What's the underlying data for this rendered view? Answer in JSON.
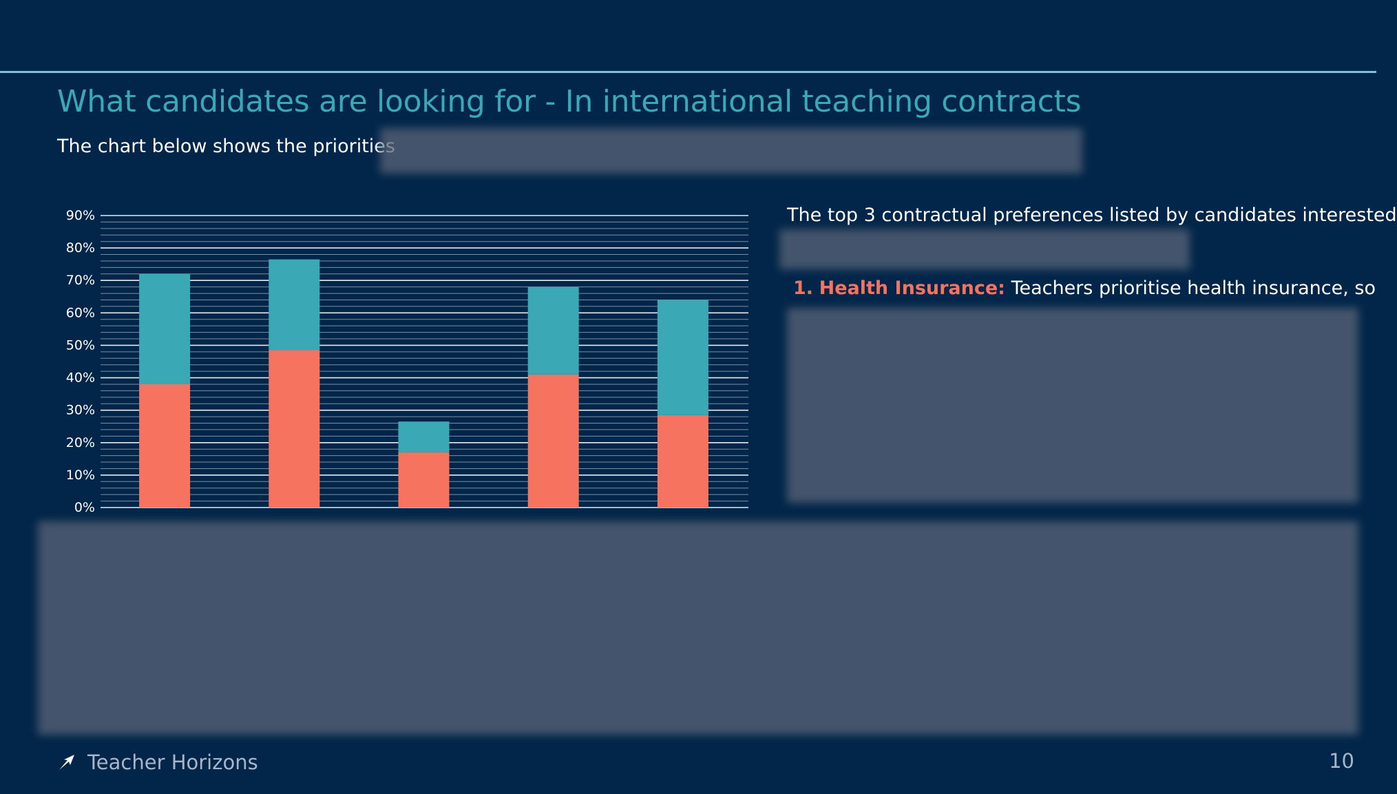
{
  "header": {
    "title": "What candidates are looking for - In international teaching contracts",
    "subtitle": "The chart below shows the priorities"
  },
  "chart_data": {
    "type": "bar",
    "stacked": true,
    "categories": [
      "",
      "",
      "",
      "",
      ""
    ],
    "series": [
      {
        "values": [
          38,
          48.5,
          17,
          41,
          28.5
        ],
        "color": "#f5735f"
      },
      {
        "values": [
          34,
          28,
          9.5,
          27,
          35.5
        ],
        "color": "#3aa8b5"
      }
    ],
    "ylim": [
      0,
      90
    ],
    "yticks": [
      "0%",
      "10%",
      "20%",
      "30%",
      "40%",
      "50%",
      "60%",
      "70%",
      "80%",
      "90%"
    ],
    "grid": true,
    "title": "",
    "xlabel": "",
    "ylabel": ""
  },
  "right": {
    "intro": "The top 3 contractual preferences listed by candidates interested",
    "item_number": "1.",
    "item_heading": "Health Insurance:",
    "item_text": "Teachers prioritise health insurance, so"
  },
  "footer": {
    "brand": "Teacher Horizons",
    "page_number": "10",
    "logo_icon": "bird-arrow-icon"
  },
  "colors": {
    "background": "#022649",
    "accent_teal": "#3aa8b5",
    "accent_coral": "#f5735f",
    "rule": "#7fc1d6"
  }
}
